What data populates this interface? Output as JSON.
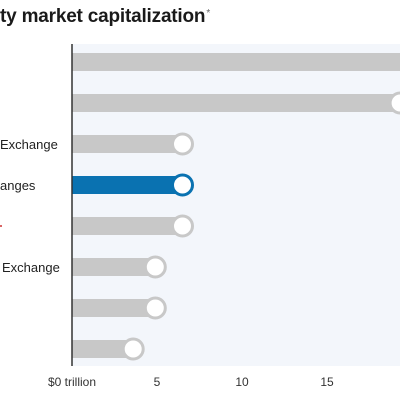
{
  "title": "ty market capitalization",
  "title_note": "*",
  "chart_data": {
    "type": "bar",
    "orientation": "horizontal",
    "title": "ty market capitalization",
    "xlabel": "",
    "ylabel": "",
    "xlim": [
      0,
      20
    ],
    "grid": false,
    "categories": [
      "",
      "",
      "Exchange",
      "anges",
      "",
      "Exchange",
      "",
      ""
    ],
    "values": [
      22.0,
      19.3,
      6.5,
      6.5,
      6.5,
      4.9,
      4.9,
      3.6
    ],
    "highlight_index": 3,
    "x_ticks": [
      0,
      5,
      10,
      15
    ],
    "x_tick_labels": [
      "$0 trillion",
      "5",
      "10",
      "15"
    ],
    "colors": {
      "bar": "#c8c8c8",
      "highlight": "#0a72b1",
      "background_band": "#f3f6fb",
      "axis": "#333333",
      "marker_stroke": "#c8c8c8"
    }
  }
}
